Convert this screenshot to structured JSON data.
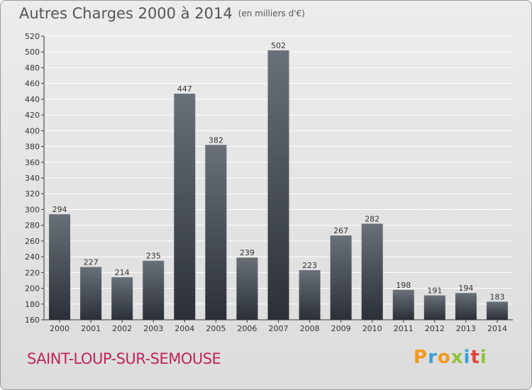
{
  "title": "Autres Charges 2000 à 2014",
  "subtitle": "(en milliers d'€)",
  "commune": "SAINT-LOUP-SUR-SEMOUSE",
  "logo": {
    "letters": [
      "P",
      "r",
      "o",
      "x",
      "i",
      "t",
      "i"
    ],
    "colors": [
      "#f29a1e",
      "#3aa0d8",
      "#f29a1e",
      "#8cc43c",
      "#3aa0d8",
      "#e0443c",
      "#8cc43c"
    ]
  },
  "colors": {
    "bar_light": "#6a7078",
    "bar_dark": "#2b3038",
    "grid": "#ffffff",
    "axis": "#333333"
  },
  "chart_data": {
    "type": "bar",
    "categories": [
      "2000",
      "2001",
      "2002",
      "2003",
      "2004",
      "2005",
      "2006",
      "2007",
      "2008",
      "2009",
      "2010",
      "2011",
      "2012",
      "2013",
      "2014"
    ],
    "values": [
      294,
      227,
      214,
      235,
      447,
      382,
      239,
      502,
      223,
      267,
      282,
      198,
      191,
      194,
      183
    ],
    "ylim": [
      160,
      520
    ],
    "yticks": [
      160,
      180,
      200,
      220,
      240,
      260,
      280,
      300,
      320,
      340,
      360,
      380,
      400,
      420,
      440,
      460,
      480,
      500,
      520
    ],
    "grid": true,
    "title": "Autres Charges 2000 à 2014",
    "xlabel": "",
    "ylabel": ""
  }
}
